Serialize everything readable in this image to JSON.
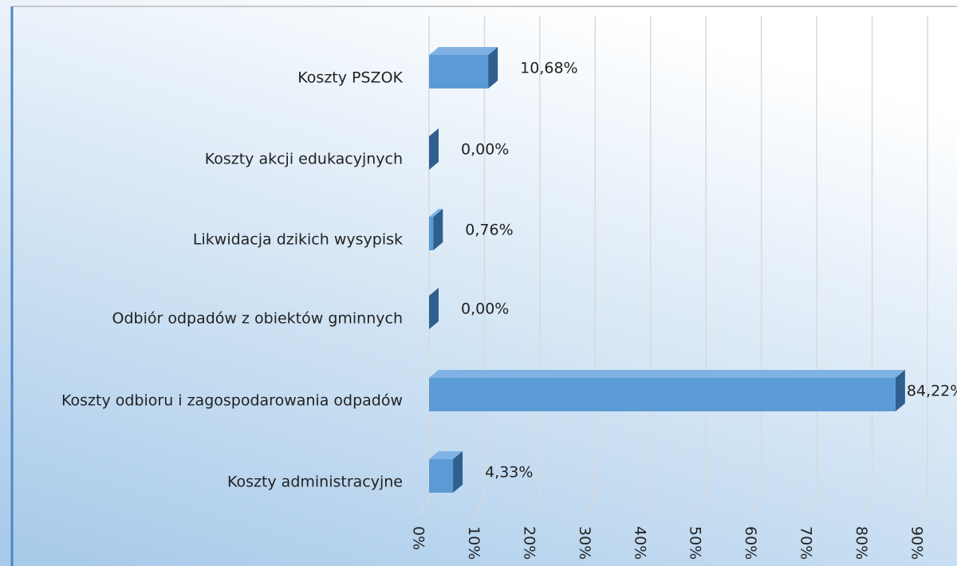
{
  "chart_data": {
    "type": "bar3d-horizontal",
    "categories": [
      "Koszty PSZOK",
      "Koszty akcji edukacyjnych",
      "Likwidacja dzikich wysypisk",
      "Odbiór odpadów z obiektów gminnych",
      "Koszty odbioru i zagospodarowania odpadów",
      "Koszty administracyjne"
    ],
    "values": [
      10.68,
      0.0,
      0.76,
      0.0,
      84.22,
      4.33
    ],
    "value_labels": [
      "10,68%",
      "0,00%",
      "0,76%",
      "0,00%",
      "84,22%",
      "4,33%"
    ],
    "color": "#5b9bd5",
    "xlim": [
      0,
      90
    ],
    "xticks": [
      {
        "value": 0,
        "label": "0%"
      },
      {
        "value": 10,
        "label": "10%"
      },
      {
        "value": 20,
        "label": "20%"
      },
      {
        "value": 30,
        "label": "30%"
      },
      {
        "value": 40,
        "label": "40%"
      },
      {
        "value": 50,
        "label": "50%"
      },
      {
        "value": 60,
        "label": "60%"
      },
      {
        "value": 70,
        "label": "70%"
      },
      {
        "value": 80,
        "label": "80%"
      },
      {
        "value": 90,
        "label": "90%"
      }
    ],
    "grid": true
  }
}
